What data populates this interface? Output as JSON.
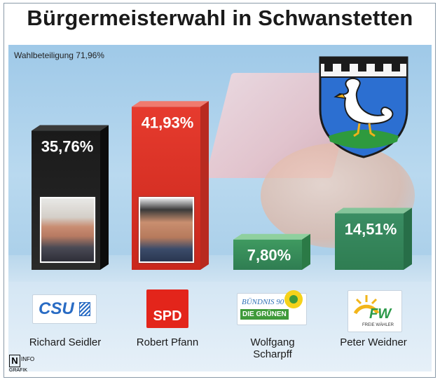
{
  "title": "Bürgermeisterwahl in Schwanstetten",
  "turnout": "Wahlbeteiligung 71,96%",
  "chart_data": {
    "type": "bar",
    "title": "Bürgermeisterwahl in Schwanstetten",
    "categories": [
      "Richard Seidler",
      "Robert Pfann",
      "Wolfgang Scharpff",
      "Peter Weidner"
    ],
    "values": [
      35.76,
      41.93,
      7.8,
      14.51
    ],
    "value_labels": [
      "35,76%",
      "41,93%",
      "7,80%",
      "14,51%"
    ],
    "parties": [
      "CSU",
      "SPD",
      "Bündnis 90 Die Grünen",
      "FW Freie Wähler"
    ],
    "colors": [
      "#1a1a1a",
      "#e63b2e",
      "#3f9a60",
      "#3a8d63"
    ]
  },
  "candidates": [
    {
      "name_line1": "Richard Seidler",
      "name_line2": ""
    },
    {
      "name_line1": "Robert Pfann",
      "name_line2": ""
    },
    {
      "name_line1": "Wolfgang",
      "name_line2": "Scharpff"
    },
    {
      "name_line1": "Peter Weidner",
      "name_line2": ""
    }
  ],
  "logos": {
    "csu": "CSU",
    "spd": "SPD",
    "gruene_line1": "BÜNDNIS 90",
    "gruene_line2": "DIE GRÜNEN",
    "fw": "FW",
    "fw_sub": "FREIE WÄHLER"
  },
  "credit": {
    "n": "N",
    "info": "INFO",
    "grafik": "GRAFIK"
  },
  "icons": {
    "coat_of_arms": "swan-coat-of-arms-icon",
    "sun": "sunflower-icon"
  }
}
